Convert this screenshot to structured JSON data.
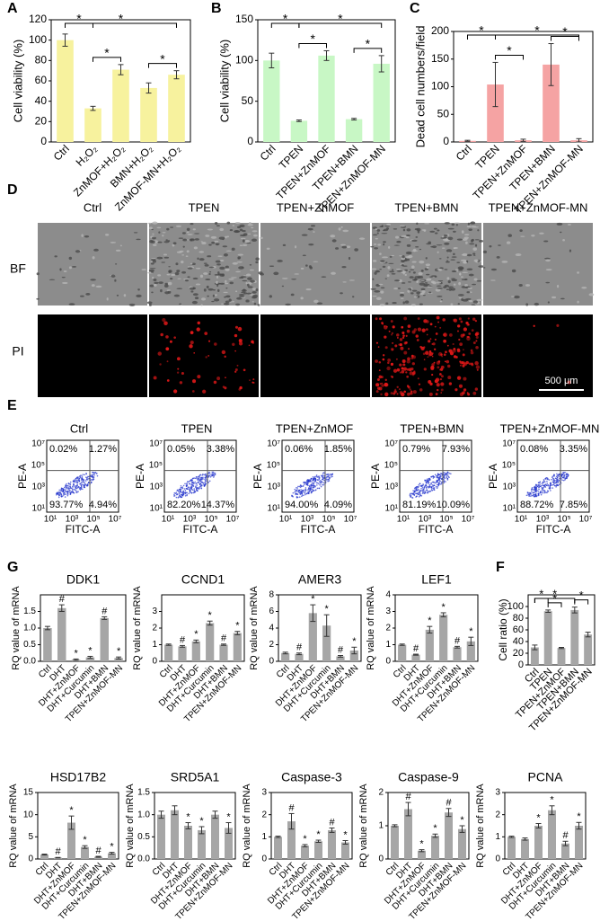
{
  "panel_labels": [
    "A",
    "B",
    "C",
    "D",
    "E",
    "F",
    "G"
  ],
  "chart_data": [
    {
      "type": "bar",
      "ylabel": "Cell viability (%)",
      "categories": [
        "Ctrl",
        "H₂O₂",
        "ZnMOF+H₂O₂",
        "BMN+H₂O₂",
        "ZnMOF-MN+H₂O₂"
      ],
      "values": [
        100,
        33,
        71,
        53,
        66
      ],
      "errors": [
        6,
        2,
        5,
        5,
        4
      ],
      "color": "#f7f29e",
      "ylim": [
        0,
        120
      ],
      "yticks": [
        0,
        20,
        40,
        60,
        80,
        100,
        120
      ],
      "brackets": [
        {
          "from": 0,
          "to": 1,
          "label": "*"
        },
        {
          "from": 0,
          "to": 4,
          "label": "*"
        },
        {
          "from": 1,
          "to": 2,
          "label": "*"
        },
        {
          "from": 3,
          "to": 4,
          "label": "*"
        }
      ]
    },
    {
      "type": "bar",
      "ylabel": "Cell viability (%)",
      "categories": [
        "Ctrl",
        "TPEN",
        "TPEN+ZnMOF",
        "TPEN+BMN",
        "TPEN+ZnMOF-MN"
      ],
      "values": [
        100,
        26,
        106,
        28,
        96
      ],
      "errors": [
        9,
        1,
        6,
        1,
        10
      ],
      "color": "#c8f7c5",
      "ylim": [
        0,
        150
      ],
      "yticks": [
        0,
        50,
        100,
        150
      ],
      "brackets": [
        {
          "from": 0,
          "to": 1,
          "label": "*"
        },
        {
          "from": 1,
          "to": 4,
          "label": "*"
        },
        {
          "from": 1,
          "to": 2,
          "label": "*"
        },
        {
          "from": 3,
          "to": 4,
          "label": "*"
        }
      ]
    },
    {
      "type": "bar",
      "ylabel": "Dead cell numbers/field",
      "categories": [
        "Ctrl",
        "TPEN",
        "TPEN+ZnMOF",
        "TPEN+BMN",
        "TPEN+ZnMOF-MN"
      ],
      "values": [
        2,
        104,
        3,
        140,
        3
      ],
      "errors": [
        1,
        40,
        2,
        38,
        3
      ],
      "color": "#f5a3a3",
      "ylim": [
        0,
        200
      ],
      "yticks": [
        0,
        50,
        100,
        150,
        200
      ],
      "brackets": [
        {
          "from": 0,
          "to": 1,
          "label": "*"
        },
        {
          "from": 1,
          "to": 4,
          "label": "*"
        },
        {
          "from": 1,
          "to": 2,
          "label": "*"
        },
        {
          "from": 3,
          "to": 4,
          "label": "*"
        }
      ]
    },
    {
      "type": "bar",
      "ylabel": "Cell ratio (%)",
      "categories": [
        "Ctrl",
        "TPEN",
        "TPEN+ZnMOF",
        "TPEN+BMN",
        "TPEN+ZnMOF-MN"
      ],
      "values": [
        30,
        92,
        29,
        94,
        52
      ],
      "errors": [
        4,
        2,
        1,
        5,
        4
      ],
      "color": "#a6a6a6",
      "ylim": [
        0,
        120
      ],
      "yticks": [
        0,
        20,
        40,
        60,
        80,
        100
      ],
      "brackets": [
        {
          "from": 0,
          "to": 1,
          "label": "*"
        },
        {
          "from": 0,
          "to": 3,
          "label": "*"
        },
        {
          "from": 1,
          "to": 2,
          "label": "*"
        },
        {
          "from": 3,
          "to": 4,
          "label": "*"
        }
      ]
    },
    {
      "type": "bar",
      "title": "DDK1",
      "ylabel": "RQ value of mRNA",
      "categories": [
        "Ctrl",
        "DHT",
        "DHT+ZnMOF",
        "DHT+Curcumin",
        "DHT+BMN",
        "TPEN+ZnMOF-MN"
      ],
      "values": [
        1.0,
        1.6,
        0.05,
        0.12,
        1.3,
        0.1
      ],
      "errors": [
        0.05,
        0.1,
        0.02,
        0.03,
        0.04,
        0.03
      ],
      "color": "#a6a6a6",
      "ylim": [
        0,
        2
      ],
      "yticks": [
        {
          "value": 0,
          "label": "0.0"
        },
        {
          "value": 0.5,
          "label": "0.5"
        },
        {
          "value": 1,
          "label": "1.0"
        },
        {
          "value": 1.5,
          "label": "1.5"
        }
      ],
      "annotations": [
        null,
        "#",
        "*",
        "*",
        "#",
        "*"
      ]
    },
    {
      "type": "bar",
      "title": "CCND1",
      "ylabel": "RQ value of mRNA",
      "categories": [
        "Ctrl",
        "DHT",
        "DHT+ZnMOF",
        "DHT+Curcumin",
        "DHT+BMN",
        "TPEN+ZnMOF-MN"
      ],
      "values": [
        1.0,
        0.9,
        1.2,
        2.3,
        1.0,
        1.7
      ],
      "errors": [
        0.04,
        0.05,
        0.08,
        0.12,
        0.04,
        0.1
      ],
      "color": "#a6a6a6",
      "ylim": [
        0,
        4
      ],
      "yticks": [
        0,
        1,
        2,
        3
      ],
      "annotations": [
        null,
        "#",
        "*",
        "*",
        "#",
        "*"
      ]
    },
    {
      "type": "bar",
      "title": "AMER3",
      "ylabel": "RQ value of mRNA",
      "categories": [
        "Ctrl",
        "DHT",
        "DHT+ZnMOF",
        "DHT+Curcumin",
        "DHT+BMN",
        "TPEN+ZnMOF-MN"
      ],
      "values": [
        1.0,
        0.9,
        5.8,
        4.3,
        0.6,
        1.3
      ],
      "errors": [
        0.1,
        0.1,
        1.0,
        1.3,
        0.1,
        0.4
      ],
      "color": "#a6a6a6",
      "ylim": [
        0,
        8
      ],
      "yticks": [
        0,
        2,
        4,
        6,
        8
      ],
      "annotations": [
        null,
        "#",
        "*",
        "*",
        "#",
        "*"
      ]
    },
    {
      "type": "bar",
      "title": "LEF1",
      "ylabel": "RQ value of mRNA",
      "categories": [
        "Ctrl",
        "DHT",
        "DHT+ZnMOF",
        "DHT+Curcumin",
        "DHT+BMN",
        "TPEN+ZnMOF-MN"
      ],
      "values": [
        1.0,
        0.4,
        1.9,
        2.8,
        0.85,
        1.2
      ],
      "errors": [
        0.04,
        0.03,
        0.2,
        0.12,
        0.05,
        0.25
      ],
      "color": "#a6a6a6",
      "ylim": [
        0,
        4
      ],
      "yticks": [
        0,
        1,
        2,
        3,
        4
      ],
      "annotations": [
        null,
        "#",
        "*",
        "*",
        "#",
        "*"
      ]
    },
    {
      "type": "bar",
      "title": "HSD17B2",
      "ylabel": "RQ value of mRNA",
      "categories": [
        "Ctrl",
        "DHT",
        "DHT+ZnMOF",
        "DHT+Curcumin",
        "DHT+BMN",
        "TPEN+ZnMOF-MN"
      ],
      "values": [
        1.0,
        0.3,
        8.2,
        2.7,
        0.5,
        1.3
      ],
      "errors": [
        0.1,
        0.05,
        1.5,
        0.3,
        0.1,
        0.2
      ],
      "color": "#a6a6a6",
      "ylim": [
        0,
        15
      ],
      "yticks": [
        0,
        5,
        10,
        15
      ],
      "annotations": [
        null,
        "#",
        "*",
        "*",
        "#",
        "*"
      ]
    },
    {
      "type": "bar",
      "title": "SRD5A1",
      "ylabel": "RQ value of mRNA",
      "categories": [
        "Ctrl",
        "DHT",
        "DHT+ZnMOF",
        "DHT+Curcumin",
        "DHT+BMN",
        "TPEN+ZnMOF-MN"
      ],
      "values": [
        1.0,
        1.1,
        0.75,
        0.65,
        1.0,
        0.7
      ],
      "errors": [
        0.08,
        0.1,
        0.07,
        0.08,
        0.08,
        0.12
      ],
      "color": "#a6a6a6",
      "ylim": [
        0,
        1.5
      ],
      "yticks": [
        {
          "value": 0,
          "label": "0.0"
        },
        {
          "value": 0.5,
          "label": "0.5"
        },
        {
          "value": 1,
          "label": "1.0"
        },
        {
          "value": 1.5,
          "label": "1.5"
        }
      ],
      "annotations": [
        null,
        null,
        "*",
        "*",
        null,
        "*"
      ]
    },
    {
      "type": "bar",
      "title": "Caspase-3",
      "ylabel": "RQ value of mRNA",
      "categories": [
        "Ctrl",
        "DHT",
        "DHT+ZnMOF",
        "DHT+Curcumin",
        "DHT+BMN",
        "TPEN+ZnMOF-MN"
      ],
      "values": [
        1.0,
        1.7,
        0.6,
        0.8,
        1.3,
        0.75
      ],
      "errors": [
        0.03,
        0.35,
        0.05,
        0.05,
        0.1,
        0.08
      ],
      "color": "#a6a6a6",
      "ylim": [
        0,
        3
      ],
      "yticks": [
        0,
        1,
        2,
        3
      ],
      "annotations": [
        null,
        "#",
        "*",
        "*",
        "#",
        "*"
      ]
    },
    {
      "type": "bar",
      "title": "Caspase-9",
      "ylabel": "RQ value of mRNA",
      "categories": [
        "Ctrl",
        "DHT",
        "DHT+ZnMOF",
        "DHT+Curcumin",
        "DHT+BMN",
        "TPEN+ZnMOF-MN"
      ],
      "values": [
        1.0,
        1.5,
        0.25,
        0.7,
        1.4,
        0.9
      ],
      "errors": [
        0.03,
        0.2,
        0.03,
        0.05,
        0.12,
        0.1
      ],
      "color": "#a6a6a6",
      "ylim": [
        0,
        2
      ],
      "yticks": [
        0,
        1,
        2
      ],
      "annotations": [
        null,
        "#",
        "*",
        "*",
        "#",
        "*"
      ]
    },
    {
      "type": "bar",
      "title": "PCNA",
      "ylabel": "RQ value of mRNA",
      "categories": [
        "Ctrl",
        "DHT",
        "DHT+ZnMOF",
        "DHT+Curcumin",
        "DHT+BMN",
        "TPEN+ZnMOF-MN"
      ],
      "values": [
        1.0,
        0.9,
        1.5,
        2.2,
        0.7,
        1.5
      ],
      "errors": [
        0.03,
        0.05,
        0.1,
        0.2,
        0.1,
        0.15
      ],
      "color": "#a6a6a6",
      "ylim": [
        0,
        3
      ],
      "yticks": [
        0,
        1,
        2,
        3
      ],
      "annotations": [
        null,
        null,
        "*",
        "*",
        "#",
        "*"
      ]
    }
  ],
  "panel_D": {
    "columns": [
      "Ctrl",
      "TPEN",
      "TPEN+ZnMOF",
      "TPEN+BMN",
      "TPEN+ZnMOF-MN"
    ],
    "rows": [
      "BF",
      "PI"
    ],
    "scale_bar": "500 μm"
  },
  "panel_E": {
    "x_label": "FITC-A",
    "y_label": "PE-A",
    "x_ticks": [
      "10¹",
      "10³",
      "10⁵",
      "10⁷"
    ],
    "y_ticks": [
      "10⁷",
      "10⁵",
      "10³",
      "10¹"
    ],
    "plots": [
      {
        "title": "Ctrl",
        "quadrants": [
          "0.02%",
          "1.27%",
          "93.77%",
          "4.94%"
        ]
      },
      {
        "title": "TPEN",
        "quadrants": [
          "0.05%",
          "3.38%",
          "82.20%",
          "14.37%"
        ]
      },
      {
        "title": "TPEN+ZnMOF",
        "quadrants": [
          "0.06%",
          "1.85%",
          "94.00%",
          "4.09%"
        ]
      },
      {
        "title": "TPEN+BMN",
        "quadrants": [
          "0.79%",
          "7.93%",
          "81.19%",
          "10.09%"
        ]
      },
      {
        "title": "TPEN+ZnMOF-MN",
        "quadrants": [
          "0.08%",
          "3.35%",
          "88.72%",
          "7.85%"
        ]
      }
    ]
  }
}
